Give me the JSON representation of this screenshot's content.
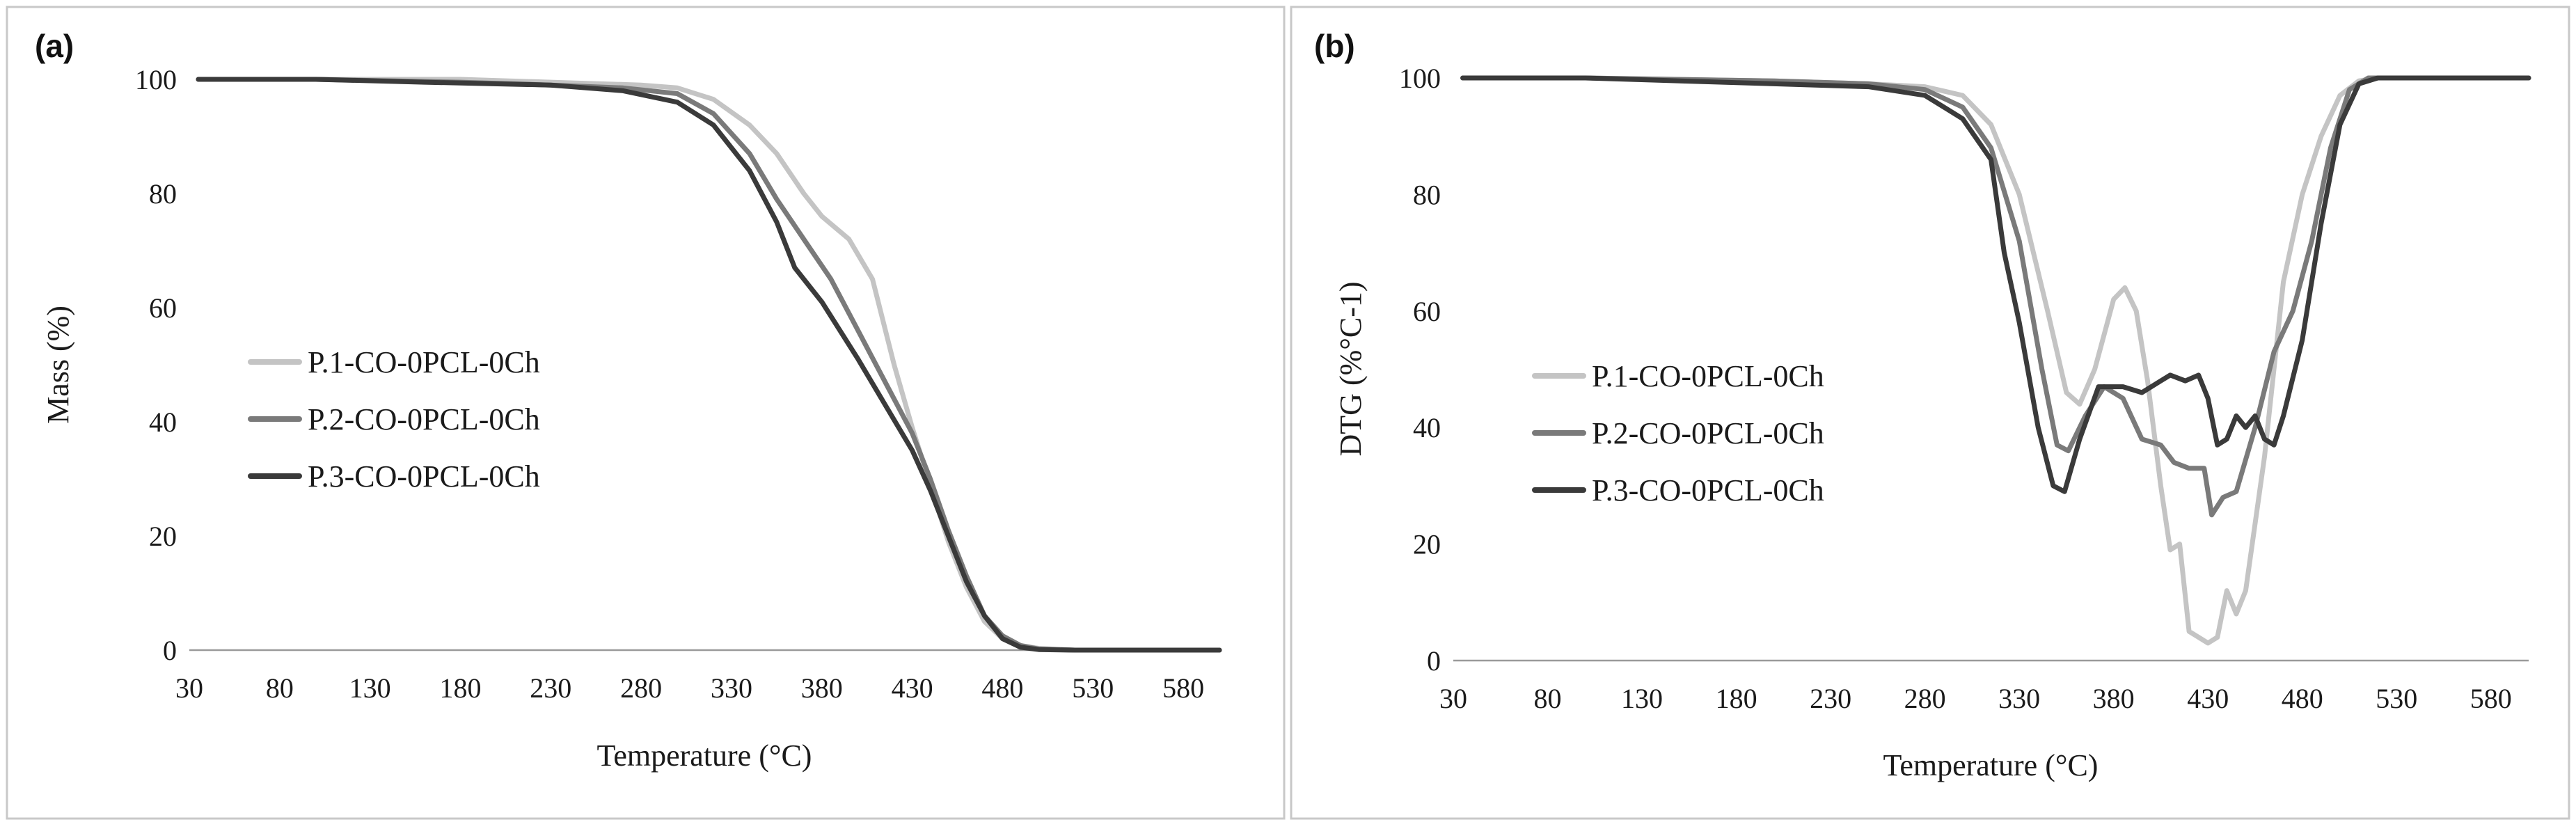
{
  "chart_data": [
    {
      "type": "line",
      "panel_label": "(a)",
      "xlabel": "Temperature (°C)",
      "ylabel": "Mass (%)",
      "xlim": [
        30,
        600
      ],
      "ylim": [
        0,
        100
      ],
      "xticks": [
        30,
        80,
        130,
        180,
        230,
        280,
        330,
        380,
        430,
        480,
        530,
        580
      ],
      "yticks": [
        0,
        20,
        40,
        60,
        80,
        100
      ],
      "legend_position": "center-left",
      "series": [
        {
          "name": "P.1-CO-0PCL-0Ch",
          "color": "#c4c4c4",
          "points": [
            [
              35,
              100
            ],
            [
              100,
              100
            ],
            [
              180,
              100
            ],
            [
              230,
              99.5
            ],
            [
              280,
              99
            ],
            [
              300,
              98.5
            ],
            [
              320,
              96.5
            ],
            [
              340,
              92
            ],
            [
              355,
              87
            ],
            [
              370,
              80
            ],
            [
              380,
              76
            ],
            [
              395,
              72
            ],
            [
              408,
              65
            ],
            [
              420,
              50
            ],
            [
              430,
              39
            ],
            [
              440,
              29
            ],
            [
              450,
              19
            ],
            [
              460,
              11
            ],
            [
              470,
              5
            ],
            [
              480,
              2
            ],
            [
              490,
              0.8
            ],
            [
              500,
              0.3
            ],
            [
              520,
              0
            ],
            [
              600,
              0
            ]
          ]
        },
        {
          "name": "P.2-CO-0PCL-0Ch",
          "color": "#7a7a7a",
          "points": [
            [
              35,
              100
            ],
            [
              100,
              100
            ],
            [
              180,
              99.5
            ],
            [
              230,
              99
            ],
            [
              270,
              98.5
            ],
            [
              300,
              97.5
            ],
            [
              320,
              94
            ],
            [
              340,
              87
            ],
            [
              355,
              79
            ],
            [
              370,
              72
            ],
            [
              385,
              65
            ],
            [
              400,
              56
            ],
            [
              415,
              47
            ],
            [
              430,
              38
            ],
            [
              440,
              30
            ],
            [
              450,
              21
            ],
            [
              460,
              13
            ],
            [
              470,
              6
            ],
            [
              480,
              2.5
            ],
            [
              490,
              0.8
            ],
            [
              500,
              0.2
            ],
            [
              520,
              0
            ],
            [
              600,
              0
            ]
          ]
        },
        {
          "name": "P.3-CO-0PCL-0Ch",
          "color": "#3a3a3a",
          "points": [
            [
              35,
              100
            ],
            [
              100,
              100
            ],
            [
              160,
              99.5
            ],
            [
              230,
              99
            ],
            [
              270,
              98
            ],
            [
              300,
              96
            ],
            [
              320,
              92
            ],
            [
              340,
              84
            ],
            [
              355,
              75
            ],
            [
              365,
              67
            ],
            [
              380,
              61
            ],
            [
              400,
              51
            ],
            [
              415,
              43
            ],
            [
              430,
              35
            ],
            [
              440,
              28
            ],
            [
              450,
              20
            ],
            [
              460,
              12
            ],
            [
              470,
              6
            ],
            [
              480,
              2
            ],
            [
              490,
              0.5
            ],
            [
              500,
              0.1
            ],
            [
              520,
              0
            ],
            [
              600,
              0
            ]
          ]
        }
      ]
    },
    {
      "type": "line",
      "panel_label": "(b)",
      "xlabel": "Temperature (°C)",
      "ylabel": "DTG (%°C-1)",
      "xlim": [
        30,
        600
      ],
      "ylim": [
        0,
        100
      ],
      "xticks": [
        30,
        80,
        130,
        180,
        230,
        280,
        330,
        380,
        430,
        480,
        530,
        580
      ],
      "yticks": [
        0,
        20,
        40,
        60,
        80,
        100
      ],
      "legend_position": "center-left",
      "series": [
        {
          "name": "P.1-CO-0PCL-0Ch",
          "color": "#c4c4c4",
          "points": [
            [
              35,
              100
            ],
            [
              100,
              100
            ],
            [
              200,
              99.5
            ],
            [
              250,
              99
            ],
            [
              280,
              98.5
            ],
            [
              300,
              97
            ],
            [
              315,
              92
            ],
            [
              330,
              80
            ],
            [
              345,
              60
            ],
            [
              355,
              46
            ],
            [
              362,
              44
            ],
            [
              370,
              50
            ],
            [
              380,
              62
            ],
            [
              386,
              64
            ],
            [
              392,
              60
            ],
            [
              398,
              48
            ],
            [
              405,
              30
            ],
            [
              410,
              19
            ],
            [
              415,
              20
            ],
            [
              420,
              5
            ],
            [
              425,
              4
            ],
            [
              430,
              3
            ],
            [
              435,
              4
            ],
            [
              440,
              12
            ],
            [
              445,
              8
            ],
            [
              450,
              12
            ],
            [
              460,
              35
            ],
            [
              470,
              65
            ],
            [
              480,
              80
            ],
            [
              490,
              90
            ],
            [
              500,
              97
            ],
            [
              510,
              99.5
            ],
            [
              520,
              100
            ],
            [
              600,
              100
            ]
          ]
        },
        {
          "name": "P.2-CO-0PCL-0Ch",
          "color": "#7a7a7a",
          "points": [
            [
              35,
              100
            ],
            [
              100,
              100
            ],
            [
              200,
              99.5
            ],
            [
              250,
              99
            ],
            [
              280,
              98
            ],
            [
              300,
              95
            ],
            [
              315,
              88
            ],
            [
              330,
              72
            ],
            [
              342,
              50
            ],
            [
              350,
              37
            ],
            [
              356,
              36
            ],
            [
              365,
              42
            ],
            [
              375,
              47
            ],
            [
              385,
              45
            ],
            [
              395,
              38
            ],
            [
              405,
              37
            ],
            [
              412,
              34
            ],
            [
              420,
              33
            ],
            [
              428,
              33
            ],
            [
              432,
              25
            ],
            [
              438,
              28
            ],
            [
              445,
              29
            ],
            [
              455,
              40
            ],
            [
              465,
              53
            ],
            [
              475,
              60
            ],
            [
              485,
              72
            ],
            [
              495,
              88
            ],
            [
              505,
              98
            ],
            [
              515,
              100
            ],
            [
              600,
              100
            ]
          ]
        },
        {
          "name": "P.3-CO-0PCL-0Ch",
          "color": "#3a3a3a",
          "points": [
            [
              35,
              100
            ],
            [
              100,
              100
            ],
            [
              200,
              99
            ],
            [
              250,
              98.5
            ],
            [
              280,
              97
            ],
            [
              300,
              93
            ],
            [
              315,
              86
            ],
            [
              322,
              70
            ],
            [
              330,
              58
            ],
            [
              340,
              40
            ],
            [
              348,
              30
            ],
            [
              354,
              29
            ],
            [
              362,
              38
            ],
            [
              372,
              47
            ],
            [
              385,
              47
            ],
            [
              395,
              46
            ],
            [
              405,
              48
            ],
            [
              410,
              49
            ],
            [
              418,
              48
            ],
            [
              425,
              49
            ],
            [
              430,
              45
            ],
            [
              435,
              37
            ],
            [
              440,
              38
            ],
            [
              445,
              42
            ],
            [
              450,
              40
            ],
            [
              455,
              42
            ],
            [
              460,
              38
            ],
            [
              465,
              37
            ],
            [
              470,
              42
            ],
            [
              480,
              55
            ],
            [
              490,
              75
            ],
            [
              500,
              92
            ],
            [
              510,
              99
            ],
            [
              520,
              100
            ],
            [
              600,
              100
            ]
          ]
        }
      ]
    }
  ]
}
